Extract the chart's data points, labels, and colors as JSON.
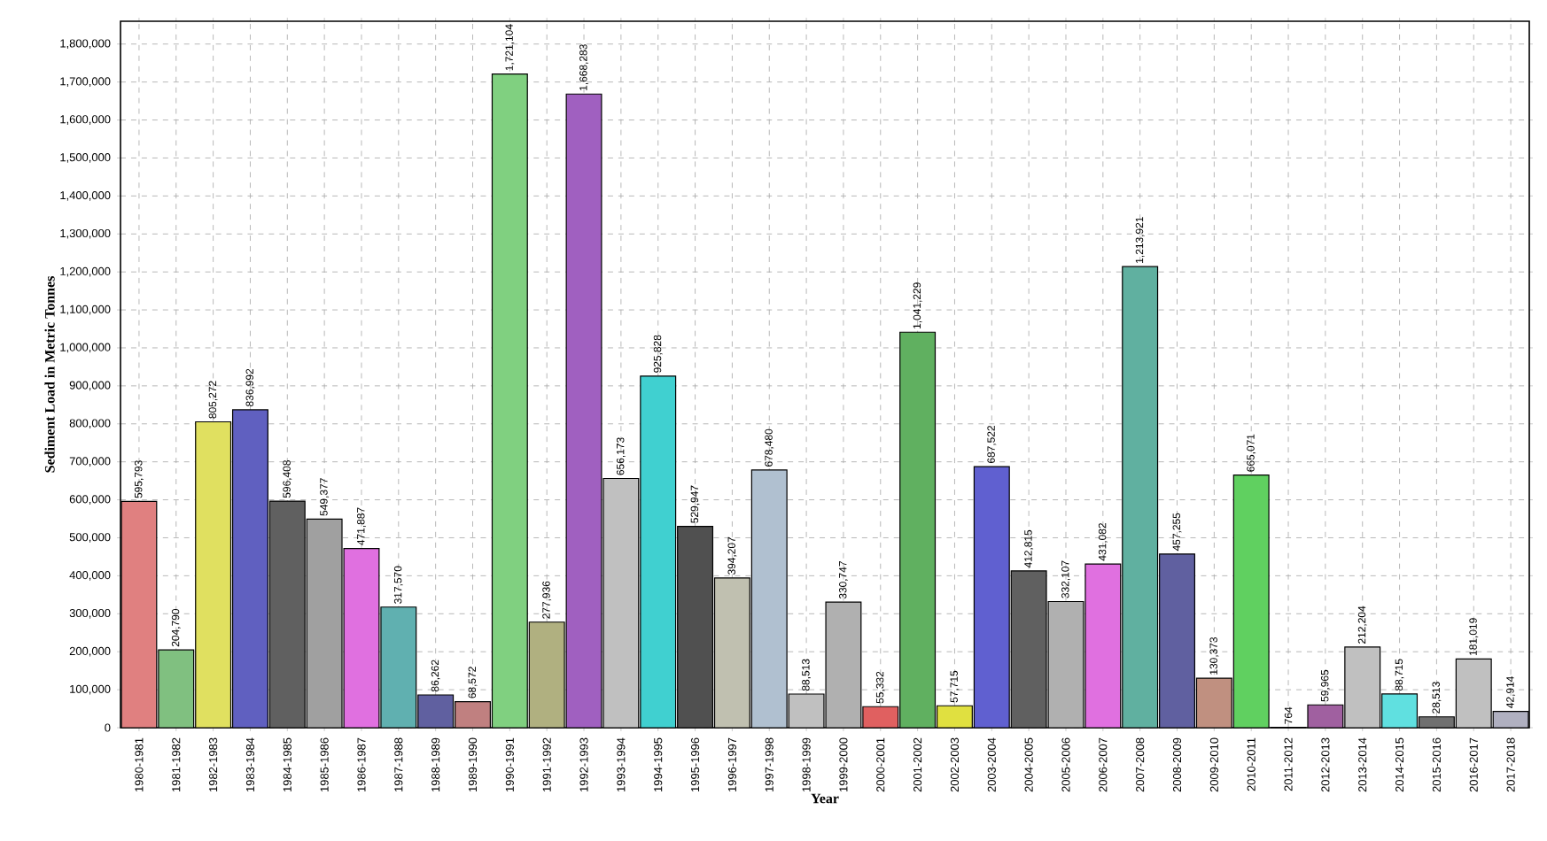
{
  "chart_data": {
    "type": "bar",
    "xlabel": "Year",
    "ylabel": "Sediment Load in Metric Tonnes",
    "categories": [
      "1980-1981",
      "1981-1982",
      "1982-1983",
      "1983-1984",
      "1984-1985",
      "1985-1986",
      "1986-1987",
      "1987-1988",
      "1988-1989",
      "1989-1990",
      "1990-1991",
      "1991-1992",
      "1992-1993",
      "1993-1994",
      "1994-1995",
      "1995-1996",
      "1996-1997",
      "1997-1998",
      "1998-1999",
      "1999-2000",
      "2000-2001",
      "2001-2002",
      "2002-2003",
      "2003-2004",
      "2004-2005",
      "2005-2006",
      "2006-2007",
      "2007-2008",
      "2008-2009",
      "2009-2010",
      "2010-2011",
      "2011-2012",
      "2012-2013",
      "2013-2014",
      "2014-2015",
      "2015-2016",
      "2016-2017",
      "2017-2018"
    ],
    "values": [
      595793,
      204790,
      805272,
      836992,
      596408,
      549377,
      471887,
      317570,
      86262,
      68572,
      1721104,
      277936,
      1668283,
      656173,
      925828,
      529947,
      394207,
      678480,
      88513,
      330747,
      55332,
      1041229,
      57715,
      687522,
      412815,
      332107,
      431082,
      1213921,
      457255,
      130373,
      665071,
      764,
      59965,
      212204,
      88715,
      28513,
      181019,
      42914
    ],
    "value_labels": [
      "595,793",
      "204,790",
      "805,272",
      "836,992",
      "596,408",
      "549,377",
      "471,887",
      "317,570",
      "86,262",
      "68,572",
      "1,721,104",
      "277,936",
      "1,668,283",
      "656,173",
      "925,828",
      "529,947",
      "394,207",
      "678,480",
      "88,513",
      "330,747",
      "55,332",
      "1,041,229",
      "57,715",
      "687,522",
      "412,815",
      "332,107",
      "431,082",
      "1,213,921",
      "457,255",
      "130,373",
      "665,071",
      "764",
      "59,965",
      "212,204",
      "88,715",
      "28,513",
      "181,019",
      "42,914"
    ],
    "colors": [
      "#e08080",
      "#80c080",
      "#e0e060",
      "#6060c0",
      "#606060",
      "#a0a0a0",
      "#e070e0",
      "#60b0b0",
      "#6060a0",
      "#c08080",
      "#80d080",
      "#b0b080",
      "#a060c0",
      "#c0c0c0",
      "#40d0d0",
      "#505050",
      "#c0c0b0",
      "#b0c0d0",
      "#c0c0c0",
      "#b0b0b0",
      "#e06060",
      "#60b060",
      "#e0e040",
      "#6060d0",
      "#606060",
      "#b0b0b0",
      "#e070e0",
      "#60b0a0",
      "#6060a0",
      "#c09080",
      "#60d060",
      "#808080",
      "#a060a0",
      "#c0c0c0",
      "#60e0e0",
      "#707070",
      "#c0c0c0",
      "#b0b0c0"
    ],
    "ylim": [
      0,
      1860000
    ],
    "yticks": [
      {
        "value": 0,
        "label": "0"
      },
      {
        "value": 100000,
        "label": "100,000"
      },
      {
        "value": 200000,
        "label": "200,000"
      },
      {
        "value": 300000,
        "label": "300,000"
      },
      {
        "value": 400000,
        "label": "400,000"
      },
      {
        "value": 500000,
        "label": "500,000"
      },
      {
        "value": 600000,
        "label": "600,000"
      },
      {
        "value": 700000,
        "label": "700,000"
      },
      {
        "value": 800000,
        "label": "800,000"
      },
      {
        "value": 900000,
        "label": "900,000"
      },
      {
        "value": 1000000,
        "label": "1,000,000"
      },
      {
        "value": 1100000,
        "label": "1,100,000"
      },
      {
        "value": 1200000,
        "label": "1,200,000"
      },
      {
        "value": 1300000,
        "label": "1,300,000"
      },
      {
        "value": 1400000,
        "label": "1,400,000"
      },
      {
        "value": 1500000,
        "label": "1,500,000"
      },
      {
        "value": 1600000,
        "label": "1,600,000"
      },
      {
        "value": 1700000,
        "label": "1,700,000"
      },
      {
        "value": 1800000,
        "label": "1,800,000"
      }
    ],
    "grid": true
  }
}
